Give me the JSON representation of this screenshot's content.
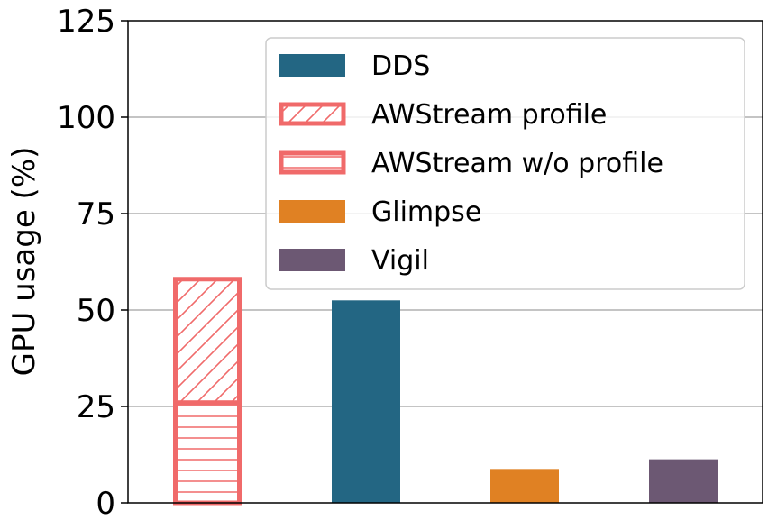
{
  "chart_data": {
    "type": "bar",
    "ylabel": "GPU usage (%)",
    "ylim": [
      0,
      125
    ],
    "yticks": [
      0,
      25,
      50,
      75,
      100,
      125
    ],
    "grid": "y",
    "legend_position": "top-right",
    "bars": [
      {
        "group": 0,
        "series": "AWStream w/o profile",
        "bottom": 0,
        "value": 26
      },
      {
        "group": 0,
        "series": "AWStream profile",
        "bottom": 26,
        "value": 32
      },
      {
        "group": 1,
        "series": "DDS",
        "bottom": 0,
        "value": 52.5
      },
      {
        "group": 2,
        "series": "Glimpse",
        "bottom": 0,
        "value": 8.8
      },
      {
        "group": 3,
        "series": "Vigil",
        "bottom": 0,
        "value": 11.3
      }
    ],
    "legend": [
      {
        "name": "DDS",
        "color": "#236683",
        "pattern": "solid"
      },
      {
        "name": "AWStream profile",
        "color": "#f06a6a",
        "pattern": "diagonal"
      },
      {
        "name": "AWStream w/o profile",
        "color": "#f06a6a",
        "pattern": "horizontal"
      },
      {
        "name": "Glimpse",
        "color": "#e08123",
        "pattern": "solid"
      },
      {
        "name": "Vigil",
        "color": "#6c5873",
        "pattern": "solid"
      }
    ]
  }
}
